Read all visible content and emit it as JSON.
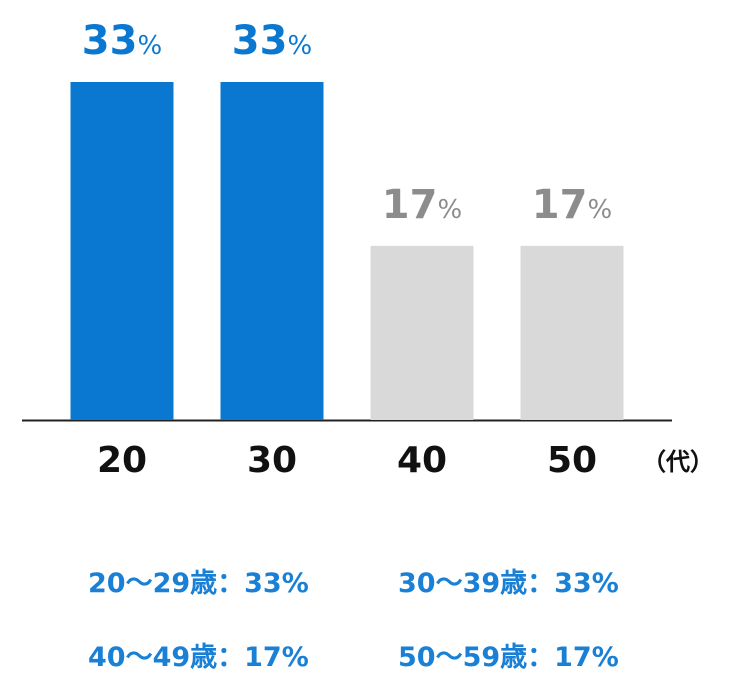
{
  "chart_data": {
    "type": "bar",
    "categories": [
      "20",
      "30",
      "40",
      "50"
    ],
    "values": [
      33,
      33,
      17,
      17
    ],
    "value_labels": [
      "33%",
      "33%",
      "17%",
      "17%"
    ],
    "colors": [
      "#0a78d1",
      "#0a78d1",
      "#d9d9d9",
      "#d9d9d9"
    ],
    "label_colors": [
      "#0a78d1",
      "#0a78d1",
      "#8c8c8c",
      "#8c8c8c"
    ],
    "x_label": "（代）",
    "annotations": [
      "20〜29歳：33%",
      "30〜39歳：33%",
      "40〜49歳：17%",
      "50〜59歳：17%"
    ],
    "annotation_color": "#1a80d5"
  }
}
